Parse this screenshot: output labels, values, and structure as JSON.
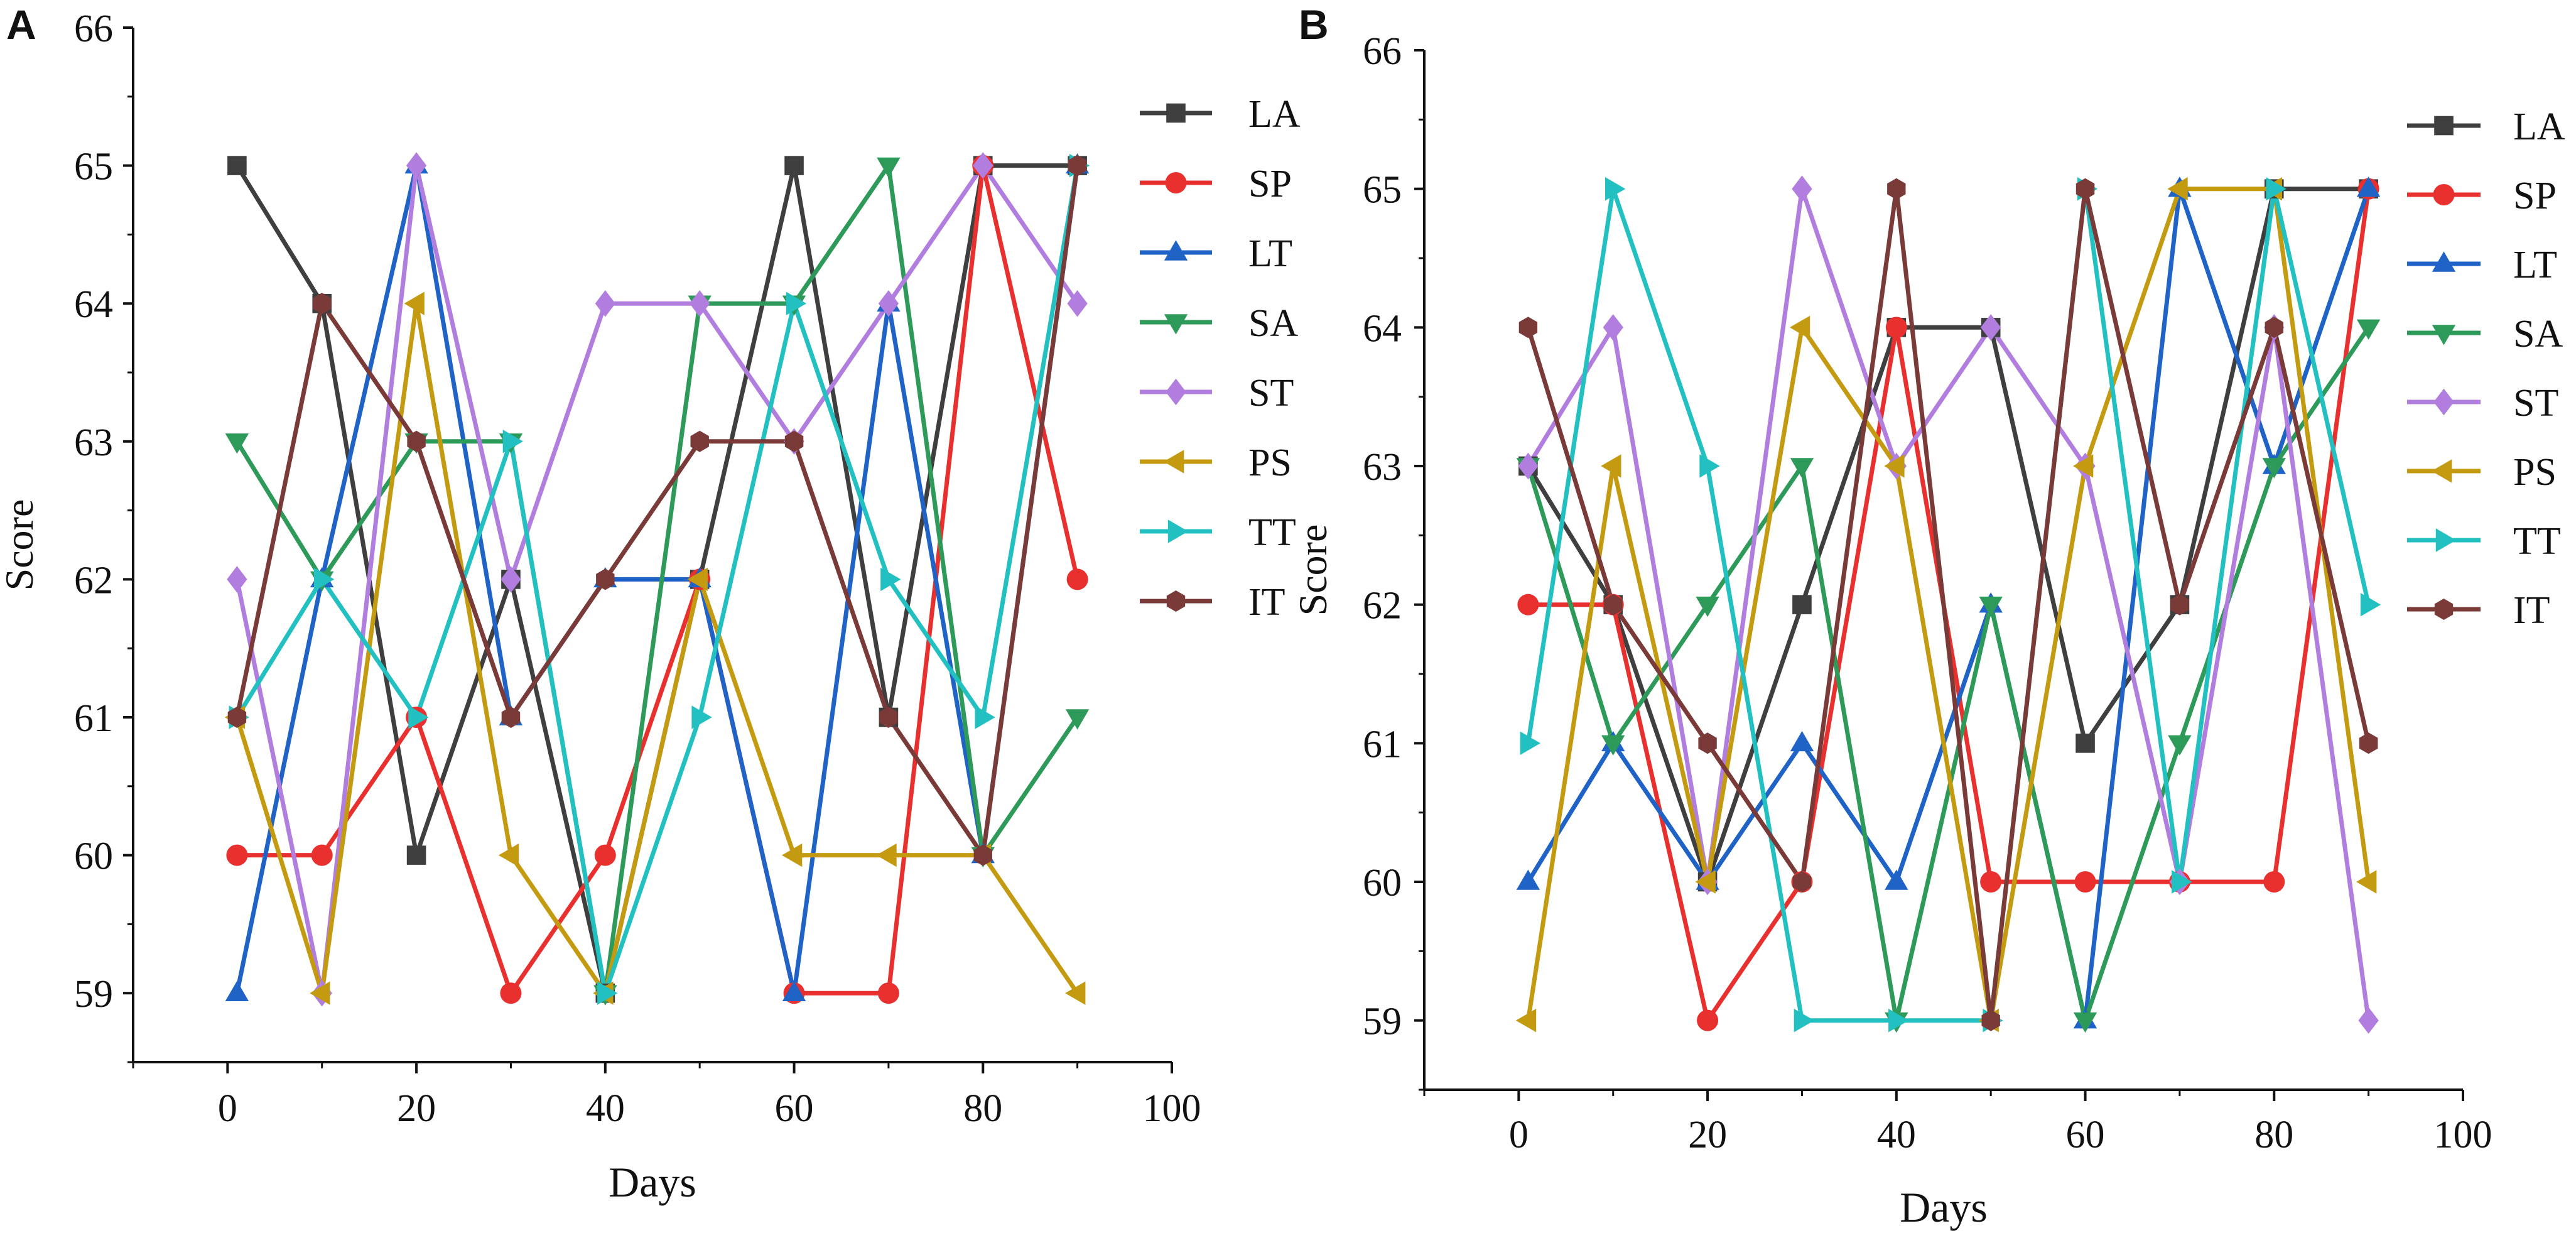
{
  "chart_data": [
    {
      "panel_label": "A",
      "type": "line",
      "xlabel": "Days",
      "ylabel": "Score",
      "xlim": [
        -10,
        100
      ],
      "ylim": [
        58.5,
        66
      ],
      "xticks": [
        0,
        20,
        40,
        60,
        80,
        100
      ],
      "yticks": [
        59,
        60,
        61,
        62,
        63,
        64,
        65,
        66
      ],
      "grid": false,
      "legend_position": "top-right",
      "x": [
        1,
        10,
        20,
        30,
        40,
        50,
        60,
        70,
        80,
        90
      ],
      "series": [
        {
          "name": "LA",
          "color": "#3f3f3f",
          "marker": "square",
          "values": [
            65,
            64,
            60,
            62,
            59,
            62,
            65,
            61,
            65,
            65
          ]
        },
        {
          "name": "SP",
          "color": "#e8312f",
          "marker": "circle",
          "values": [
            60,
            60,
            61,
            59,
            60,
            62,
            59,
            59,
            65,
            62
          ]
        },
        {
          "name": "LT",
          "color": "#1f63c6",
          "marker": "triangle-up",
          "values": [
            59,
            62,
            65,
            61,
            62,
            62,
            59,
            64,
            60,
            65
          ]
        },
        {
          "name": "SA",
          "color": "#2e9a5a",
          "marker": "triangle-down",
          "values": [
            63,
            62,
            63,
            63,
            59,
            64,
            64,
            65,
            60,
            61
          ]
        },
        {
          "name": "ST",
          "color": "#b17ee0",
          "marker": "diamond",
          "values": [
            62,
            59,
            65,
            62,
            64,
            64,
            63,
            64,
            65,
            64
          ]
        },
        {
          "name": "PS",
          "color": "#c49a10",
          "marker": "triangle-left",
          "values": [
            61,
            59,
            64,
            60,
            59,
            62,
            60,
            60,
            60,
            59
          ]
        },
        {
          "name": "TT",
          "color": "#22c0c0",
          "marker": "triangle-right",
          "values": [
            61,
            62,
            61,
            63,
            59,
            61,
            64,
            62,
            61,
            65
          ]
        },
        {
          "name": "IT",
          "color": "#7a3a38",
          "marker": "hexagon",
          "values": [
            61,
            64,
            63,
            61,
            62,
            63,
            63,
            61,
            60,
            65
          ]
        }
      ]
    },
    {
      "panel_label": "B",
      "type": "line",
      "xlabel": "Days",
      "ylabel": "Score",
      "xlim": [
        -10,
        100
      ],
      "ylim": [
        58.5,
        66
      ],
      "xticks": [
        0,
        20,
        40,
        60,
        80,
        100
      ],
      "yticks": [
        59,
        60,
        61,
        62,
        63,
        64,
        65,
        66
      ],
      "grid": false,
      "legend_position": "top-right",
      "x": [
        1,
        10,
        20,
        30,
        40,
        50,
        60,
        70,
        80,
        90
      ],
      "series": [
        {
          "name": "LA",
          "color": "#3f3f3f",
          "marker": "square",
          "values": [
            63,
            62,
            60,
            62,
            64,
            64,
            61,
            62,
            65,
            65
          ]
        },
        {
          "name": "SP",
          "color": "#e8312f",
          "marker": "circle",
          "values": [
            62,
            62,
            59,
            60,
            64,
            60,
            60,
            60,
            60,
            65
          ]
        },
        {
          "name": "LT",
          "color": "#1f63c6",
          "marker": "triangle-up",
          "values": [
            60,
            61,
            60,
            61,
            60,
            62,
            59,
            65,
            63,
            65
          ]
        },
        {
          "name": "SA",
          "color": "#2e9a5a",
          "marker": "triangle-down",
          "values": [
            63,
            61,
            62,
            63,
            59,
            62,
            59,
            61,
            63,
            64
          ]
        },
        {
          "name": "ST",
          "color": "#b17ee0",
          "marker": "diamond",
          "values": [
            63,
            64,
            60,
            65,
            63,
            64,
            63,
            60,
            64,
            59
          ]
        },
        {
          "name": "PS",
          "color": "#c49a10",
          "marker": "triangle-left",
          "values": [
            59,
            63,
            60,
            64,
            63,
            59,
            63,
            65,
            65,
            60
          ]
        },
        {
          "name": "TT",
          "color": "#22c0c0",
          "marker": "triangle-right",
          "values": [
            61,
            65,
            63,
            59,
            59,
            59,
            65,
            60,
            65,
            62
          ]
        },
        {
          "name": "IT",
          "color": "#7a3a38",
          "marker": "hexagon",
          "values": [
            64,
            62,
            61,
            60,
            65,
            59,
            65,
            62,
            64,
            61
          ]
        }
      ]
    }
  ]
}
